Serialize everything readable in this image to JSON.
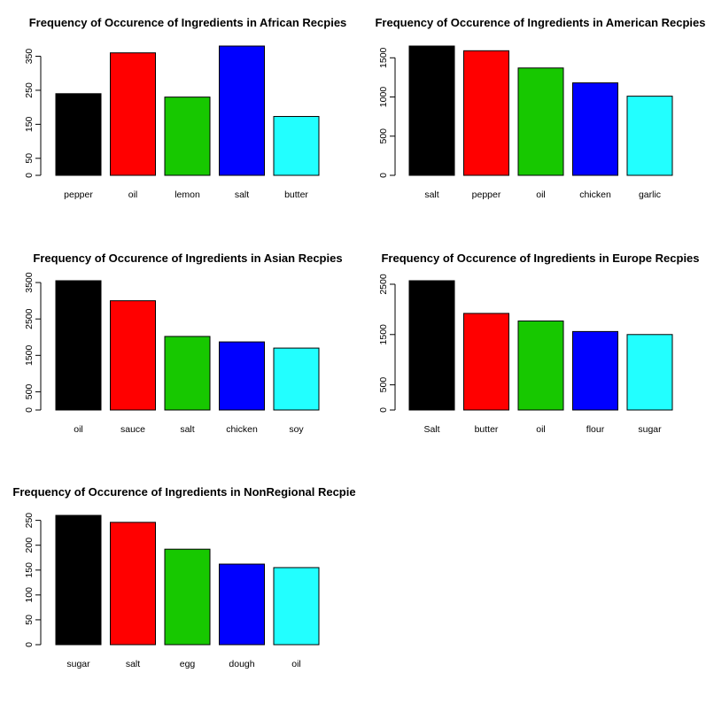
{
  "colors": [
    "#000000",
    "#ff0000",
    "#17c800",
    "#0000ff",
    "#22ffff"
  ],
  "chart_data": [
    {
      "type": "bar",
      "title": "Frequency of Occurence of Ingredients in  African Recpies",
      "categories": [
        "pepper",
        "oil",
        "lemon",
        "salt",
        "butter"
      ],
      "values": [
        240,
        360,
        230,
        380,
        173
      ],
      "yticks": [
        0,
        50,
        150,
        250,
        350
      ],
      "ylim": [
        0,
        380
      ],
      "ytick_rotated": true
    },
    {
      "type": "bar",
      "title": "Frequency of Occurence of Ingredients in  American Recpies",
      "categories": [
        "salt",
        "pepper",
        "oil",
        "chicken",
        "garlic"
      ],
      "values": [
        1650,
        1590,
        1370,
        1180,
        1010
      ],
      "yticks": [
        0,
        500,
        1000,
        1500
      ],
      "ylim": [
        0,
        1650
      ],
      "ytick_rotated": true
    },
    {
      "type": "bar",
      "title": "Frequency of Occurence of Ingredients in  Asian Recpies",
      "categories": [
        "oil",
        "sauce",
        "salt",
        "chicken",
        "soy"
      ],
      "values": [
        3550,
        3000,
        2020,
        1870,
        1700
      ],
      "yticks": [
        0,
        500,
        1500,
        2500,
        3500
      ],
      "ylim": [
        0,
        3550
      ],
      "ytick_rotated": true
    },
    {
      "type": "bar",
      "title": "Frequency of Occurence of Ingredients in  Europe Recpies",
      "categories": [
        "Salt",
        "butter",
        "oil",
        "flour",
        "sugar"
      ],
      "values": [
        2570,
        1920,
        1770,
        1560,
        1500
      ],
      "yticks": [
        0,
        500,
        1500,
        2500
      ],
      "ylim": [
        0,
        2570
      ],
      "ytick_rotated": true
    },
    {
      "type": "bar",
      "title": "Frequency of Occurence of Ingredients in  NonRegional Recpie",
      "categories": [
        "sugar",
        "salt",
        "egg",
        "dough",
        "oil"
      ],
      "values": [
        260,
        246,
        192,
        162,
        155
      ],
      "yticks": [
        0,
        50,
        100,
        150,
        200,
        250
      ],
      "ylim": [
        0,
        260
      ],
      "ytick_rotated": true
    }
  ]
}
